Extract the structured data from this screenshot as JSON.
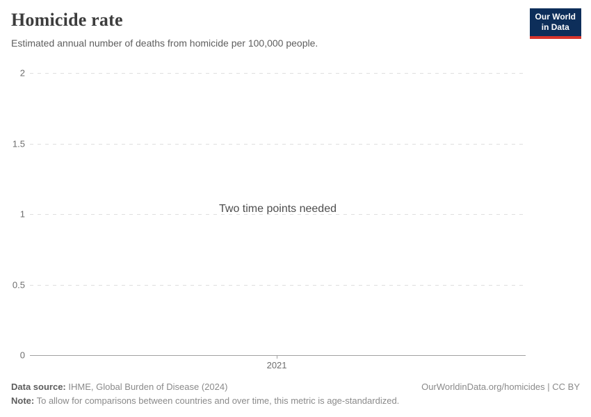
{
  "header": {
    "title": "Homicide rate",
    "subtitle": "Estimated annual number of deaths from homicide per 100,000 people.",
    "logo": {
      "line1": "Our World",
      "line2": "in Data"
    }
  },
  "chart_data": {
    "type": "line",
    "title": "Homicide rate",
    "subtitle": "Estimated annual number of deaths from homicide per 100,000 people.",
    "series": [],
    "empty_state_message": "Two time points needed",
    "xticks": [
      "2021"
    ],
    "yticks": [
      0,
      0.5,
      1,
      1.5,
      2
    ],
    "ylim": [
      0,
      2
    ],
    "xlabel": "",
    "ylabel": "",
    "grid": "horizontal-dashed",
    "legend": "none"
  },
  "footer": {
    "datasource_label": "Data source:",
    "datasource_value": " IHME, Global Burden of Disease (2024)",
    "note_label": "Note:",
    "note_value": " To allow for comparisons between countries and over time, this metric is age-standardized.",
    "link": "OurWorldinData.org/homicides | CC BY"
  },
  "colors": {
    "title": "#3c3c3c",
    "logo-bg": "#0d2e5a",
    "logo-accent": "#d8352c",
    "grid": "#dedede",
    "axis": "#a1a1a1",
    "text-muted": "#6e6e6e"
  }
}
